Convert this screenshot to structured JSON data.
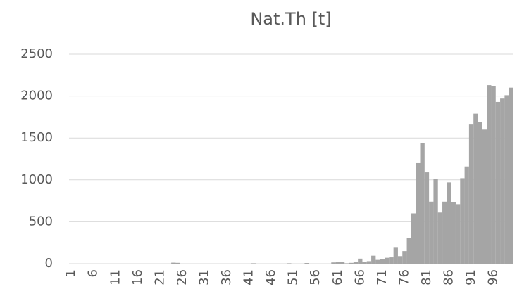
{
  "chart_data": {
    "type": "bar",
    "title": "Nat.Th [t]",
    "categories": [
      "1",
      null,
      null,
      null,
      null,
      "6",
      null,
      null,
      null,
      null,
      "11",
      null,
      null,
      null,
      null,
      "16",
      null,
      null,
      null,
      null,
      "21",
      null,
      null,
      null,
      null,
      "26",
      null,
      null,
      null,
      null,
      "31",
      null,
      null,
      null,
      null,
      "36",
      null,
      null,
      null,
      null,
      "41",
      null,
      null,
      null,
      null,
      "46",
      null,
      null,
      null,
      null,
      "51",
      null,
      null,
      null,
      null,
      "56",
      null,
      null,
      null,
      null,
      "61",
      null,
      null,
      null,
      null,
      "66",
      null,
      null,
      null,
      null,
      "71",
      null,
      null,
      null,
      null,
      "76",
      null,
      null,
      null,
      null,
      "81",
      null,
      null,
      null,
      null,
      "86",
      null,
      null,
      null,
      null,
      "91",
      null,
      null,
      null,
      null,
      "96",
      null,
      null,
      null,
      null
    ],
    "values": [
      0,
      0,
      0,
      0,
      0,
      0,
      0,
      0,
      0,
      0,
      0,
      0,
      0,
      0,
      0,
      0,
      0,
      0,
      0,
      0,
      0,
      0,
      0,
      12,
      10,
      0,
      0,
      0,
      0,
      0,
      0,
      0,
      0,
      0,
      0,
      0,
      0,
      0,
      0,
      0,
      0,
      5,
      0,
      0,
      0,
      0,
      0,
      0,
      0,
      5,
      0,
      0,
      0,
      8,
      0,
      0,
      0,
      0,
      0,
      15,
      25,
      20,
      5,
      10,
      20,
      60,
      25,
      30,
      95,
      45,
      55,
      70,
      75,
      190,
      90,
      150,
      310,
      600,
      1200,
      1440,
      1090,
      740,
      1010,
      610,
      740,
      970,
      730,
      710,
      1020,
      1160,
      1660,
      1790,
      1690,
      1600,
      2130,
      2120,
      1930,
      1970,
      2010,
      2100
    ],
    "color": "#a5a5a5",
    "ylim": [
      0,
      2500
    ],
    "yticks": [
      0,
      500,
      1000,
      1500,
      2000,
      2500
    ],
    "grid": true
  }
}
